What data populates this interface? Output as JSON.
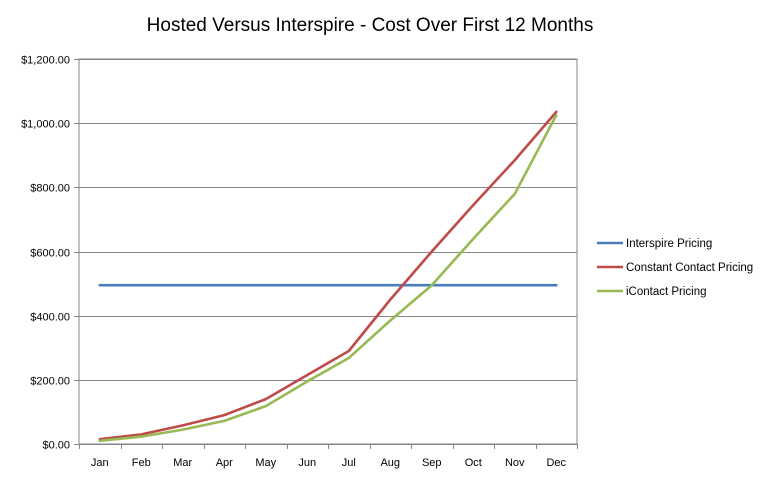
{
  "chart_data": {
    "type": "line",
    "title": "Hosted Versus Interspire - Cost Over First 12 Months",
    "xlabel": "",
    "ylabel": "",
    "categories": [
      "Jan",
      "Feb",
      "Mar",
      "Apr",
      "May",
      "Jun",
      "Jul",
      "Aug",
      "Sep",
      "Oct",
      "Nov",
      "Dec"
    ],
    "y_ticks": [
      "$0.00",
      "$200.00",
      "$400.00",
      "$600.00",
      "$800.00",
      "$1,000.00",
      "$1,200.00"
    ],
    "ylim": [
      0,
      1200
    ],
    "grid": "horizontal",
    "legend_position": "right",
    "series": [
      {
        "name": "Interspire Pricing",
        "color": "#4a7ebb",
        "values": [
          495,
          495,
          495,
          495,
          495,
          495,
          495,
          495,
          495,
          495,
          495,
          495
        ]
      },
      {
        "name": "Constant Contact Pricing",
        "color": "#be4b48",
        "values": [
          15,
          30,
          58,
          90,
          140,
          215,
          290,
          450,
          600,
          745,
          885,
          1035
        ]
      },
      {
        "name": "iContact Pricing",
        "color": "#98b954",
        "values": [
          10,
          23,
          45,
          72,
          118,
          195,
          268,
          385,
          495,
          640,
          780,
          1025
        ]
      }
    ]
  }
}
